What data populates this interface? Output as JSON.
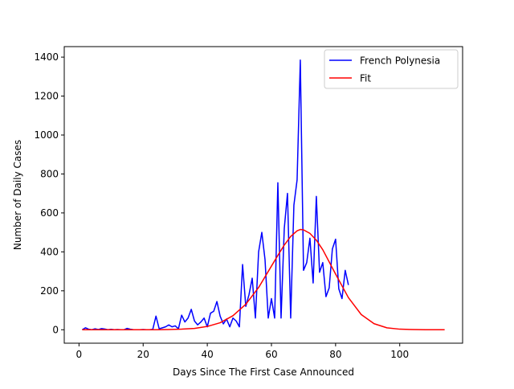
{
  "chart_data": {
    "type": "line",
    "title": "",
    "xlabel": "Days Since The First Case Announced",
    "ylabel": "Number of Daily Cases",
    "xlim": [
      -4.6,
      119.6
    ],
    "ylim": [
      -69,
      1454
    ],
    "xticks": [
      0,
      20,
      40,
      60,
      80,
      100
    ],
    "yticks": [
      0,
      200,
      400,
      600,
      800,
      1000,
      1200,
      1400
    ],
    "grid": false,
    "legend_position": "top-right",
    "series": [
      {
        "name": "French Polynesia",
        "color": "#0000ff",
        "x": [
          1,
          2,
          3,
          4,
          5,
          6,
          7,
          8,
          9,
          10,
          11,
          12,
          13,
          14,
          15,
          16,
          17,
          18,
          19,
          20,
          21,
          22,
          23,
          24,
          25,
          26,
          27,
          28,
          29,
          30,
          31,
          32,
          33,
          34,
          35,
          36,
          37,
          38,
          39,
          40,
          41,
          42,
          43,
          44,
          45,
          46,
          47,
          48,
          49,
          50,
          51,
          52,
          53,
          54,
          55,
          56,
          57,
          58,
          59,
          60,
          61,
          62,
          63,
          64,
          65,
          66,
          67,
          68,
          69,
          70,
          71,
          72,
          73,
          74,
          75,
          76,
          77,
          78,
          79,
          80,
          81,
          82,
          83,
          84
        ],
        "y": [
          0,
          10,
          3,
          0,
          5,
          1,
          6,
          4,
          0,
          2,
          0,
          1,
          0,
          0,
          7,
          3,
          0,
          0,
          0,
          1,
          0,
          0,
          2,
          70,
          5,
          10,
          15,
          25,
          15,
          20,
          5,
          75,
          40,
          60,
          105,
          45,
          25,
          40,
          60,
          15,
          85,
          95,
          145,
          70,
          30,
          55,
          15,
          60,
          45,
          15,
          335,
          120,
          180,
          265,
          60,
          400,
          500,
          360,
          60,
          160,
          60,
          755,
          60,
          520,
          700,
          60,
          640,
          770,
          1385,
          305,
          345,
          470,
          240,
          685,
          295,
          345,
          170,
          215,
          415,
          465,
          210,
          160,
          305,
          230
        ]
      },
      {
        "name": "Fit",
        "color": "#ff0000",
        "x": [
          1,
          4,
          8,
          12,
          16,
          20,
          24,
          28,
          32,
          36,
          40,
          44,
          48,
          52,
          56,
          60,
          62,
          64,
          66,
          68,
          69,
          70,
          72,
          74,
          76,
          80,
          84,
          88,
          92,
          96,
          100,
          104,
          108,
          114
        ],
        "y": [
          0,
          0,
          0,
          0,
          0,
          0,
          0,
          1,
          3,
          7,
          17,
          36,
          72,
          131,
          217,
          327,
          382,
          435,
          479,
          508,
          515,
          513,
          495,
          460,
          411,
          286,
          165,
          78,
          31,
          10,
          3,
          1,
          0,
          0
        ]
      }
    ]
  }
}
